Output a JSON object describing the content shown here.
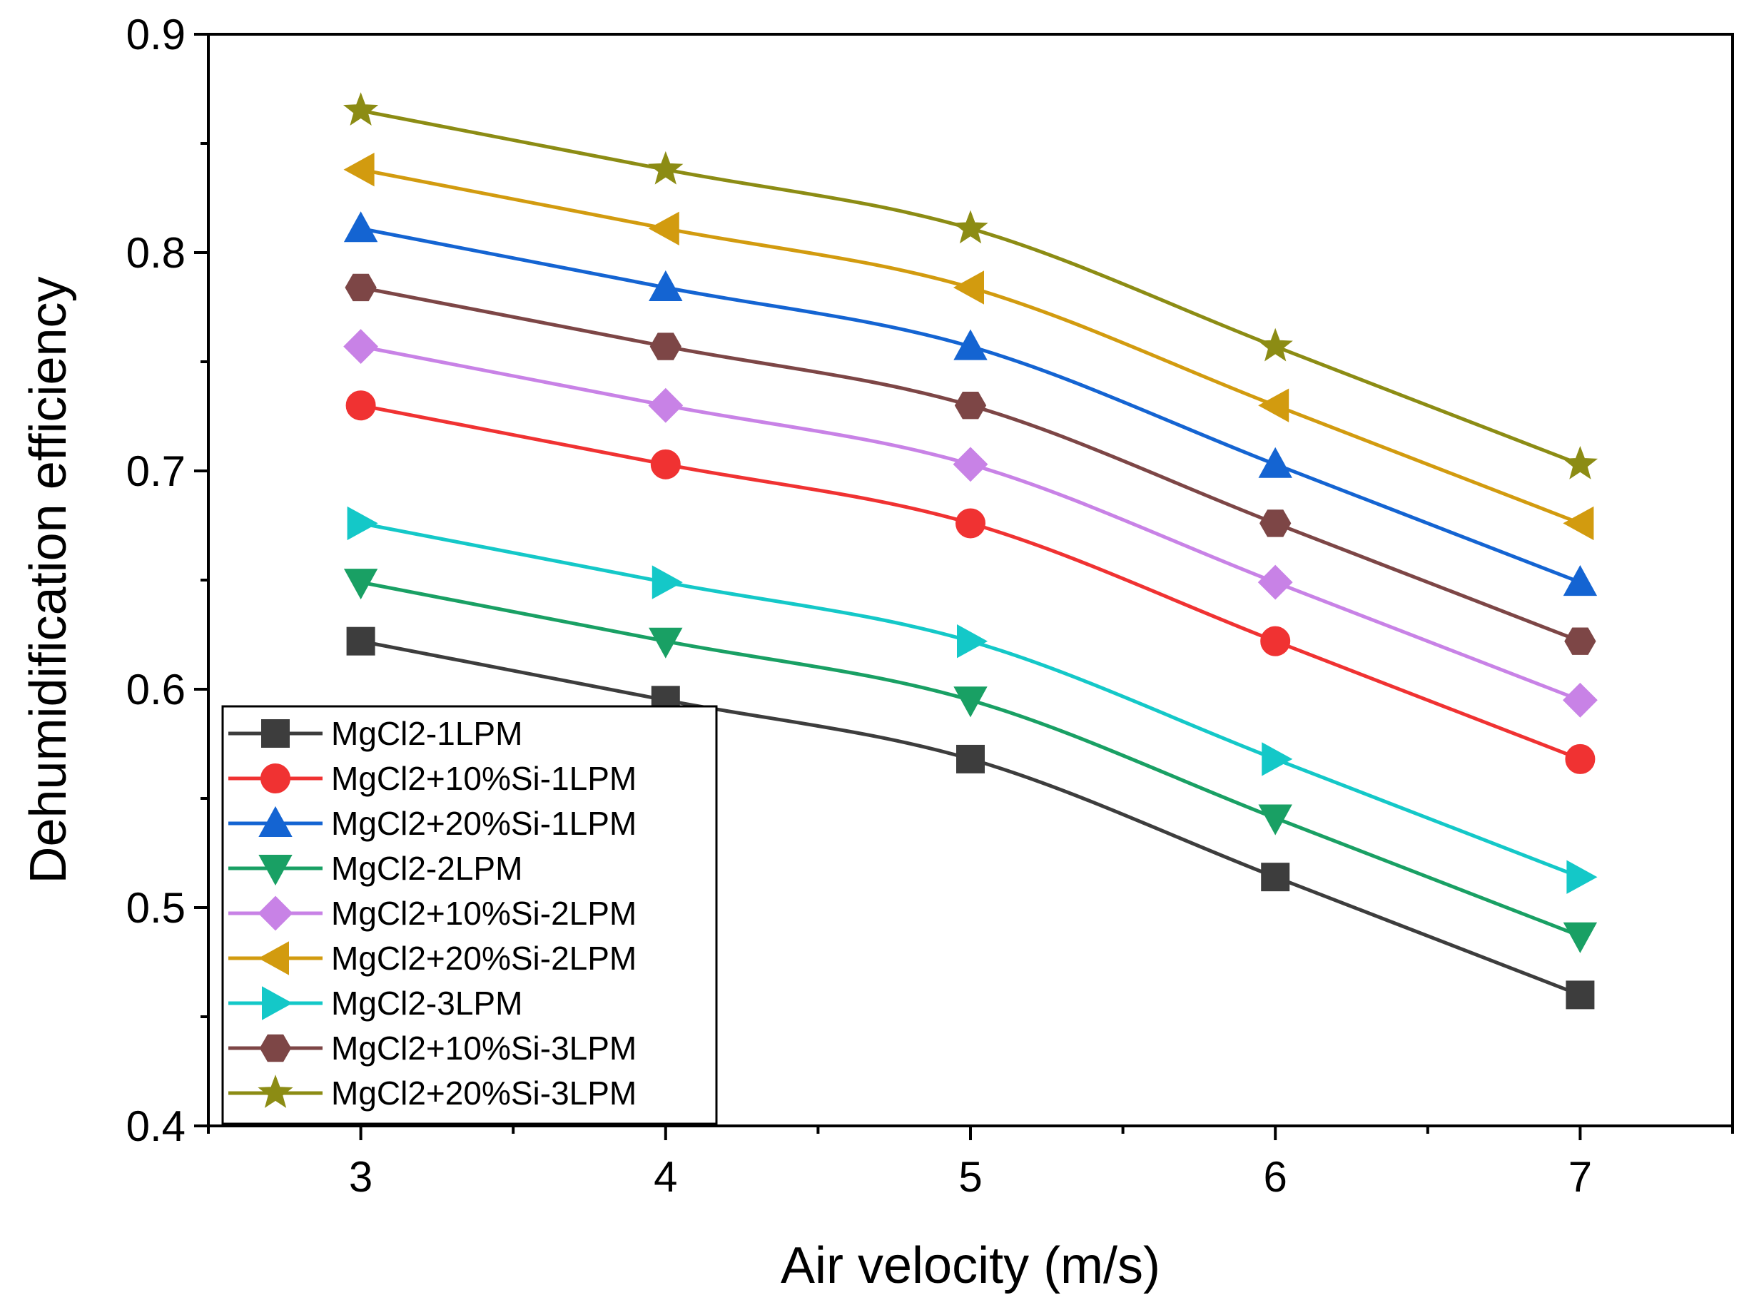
{
  "chart_data": {
    "type": "line",
    "xlabel": "Air velocity (m/s)",
    "ylabel": "Dehumidification efficiency",
    "xlim": [
      2.5,
      7.5
    ],
    "ylim": [
      0.4,
      0.9
    ],
    "xticks": [
      3,
      4,
      5,
      6,
      7
    ],
    "yticks": [
      0.4,
      0.5,
      0.6,
      0.7,
      0.8,
      0.9
    ],
    "x_tick_labels": [
      "3",
      "4",
      "5",
      "6",
      "7"
    ],
    "y_tick_labels": [
      "0.4",
      "0.5",
      "0.6",
      "0.7",
      "0.8",
      "0.9"
    ],
    "grid": false,
    "legend_position": "bottom-left",
    "x": [
      3,
      4,
      5,
      6,
      7
    ],
    "series": [
      {
        "name": "MgCl2-1LPM",
        "marker": "square",
        "color": "#3d3d3d",
        "values": [
          0.622,
          0.595,
          0.568,
          0.514,
          0.46
        ]
      },
      {
        "name": "MgCl2+10%Si-1LPM",
        "marker": "circle",
        "color": "#f03232",
        "values": [
          0.73,
          0.703,
          0.676,
          0.622,
          0.568
        ]
      },
      {
        "name": "MgCl2+20%Si-1LPM",
        "marker": "triangle-up",
        "color": "#1464d2",
        "values": [
          0.811,
          0.784,
          0.757,
          0.703,
          0.649
        ]
      },
      {
        "name": "MgCl2-2LPM",
        "marker": "triangle-down",
        "color": "#19a064",
        "values": [
          0.649,
          0.622,
          0.595,
          0.541,
          0.487
        ]
      },
      {
        "name": "MgCl2+10%Si-2LPM",
        "marker": "diamond",
        "color": "#c882e6",
        "values": [
          0.757,
          0.73,
          0.703,
          0.649,
          0.595
        ]
      },
      {
        "name": "MgCl2+20%Si-2LPM",
        "marker": "triangle-left",
        "color": "#d29b0f",
        "values": [
          0.838,
          0.811,
          0.784,
          0.73,
          0.676
        ]
      },
      {
        "name": "MgCl2-3LPM",
        "marker": "triangle-right",
        "color": "#14c8c8",
        "values": [
          0.676,
          0.649,
          0.622,
          0.568,
          0.514
        ]
      },
      {
        "name": "MgCl2+10%Si-3LPM",
        "marker": "hexagon",
        "color": "#7d4646",
        "values": [
          0.784,
          0.757,
          0.73,
          0.676,
          0.622
        ]
      },
      {
        "name": "MgCl2+20%Si-3LPM",
        "marker": "star",
        "color": "#8c8c14",
        "values": [
          0.865,
          0.838,
          0.811,
          0.757,
          0.703
        ]
      }
    ]
  }
}
